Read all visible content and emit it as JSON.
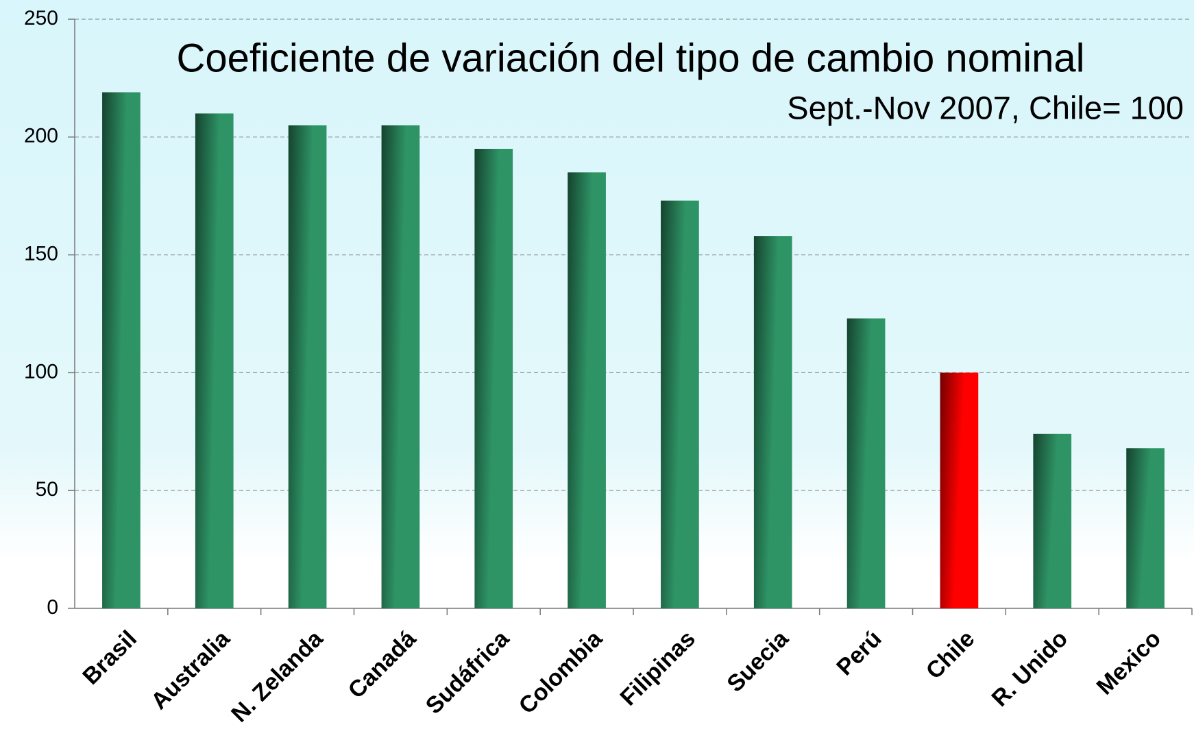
{
  "chart_data": {
    "type": "bar",
    "title": "Coeficiente de variación del tipo de cambio nominal",
    "subtitle": "Sept.-Nov 2007, Chile= 100",
    "categories": [
      "Brasil",
      "Australia",
      "N. Zelanda",
      "Canadá",
      "Sudáfrica",
      "Colombia",
      "Filipinas",
      "Suecia",
      "Perú",
      "Chile",
      "R. Unido",
      "Mexico"
    ],
    "values": [
      219,
      210,
      205,
      205,
      195,
      185,
      173,
      158,
      123,
      100,
      74,
      68
    ],
    "colors": [
      "#2e9466",
      "#2e9466",
      "#2e9466",
      "#2e9466",
      "#2e9466",
      "#2e9466",
      "#2e9466",
      "#2e9466",
      "#2e9466",
      "#ff0000",
      "#2e9466",
      "#2e9466"
    ],
    "ylim": [
      0,
      250
    ],
    "yticks": [
      0,
      50,
      100,
      150,
      200,
      250
    ],
    "grid": true
  }
}
